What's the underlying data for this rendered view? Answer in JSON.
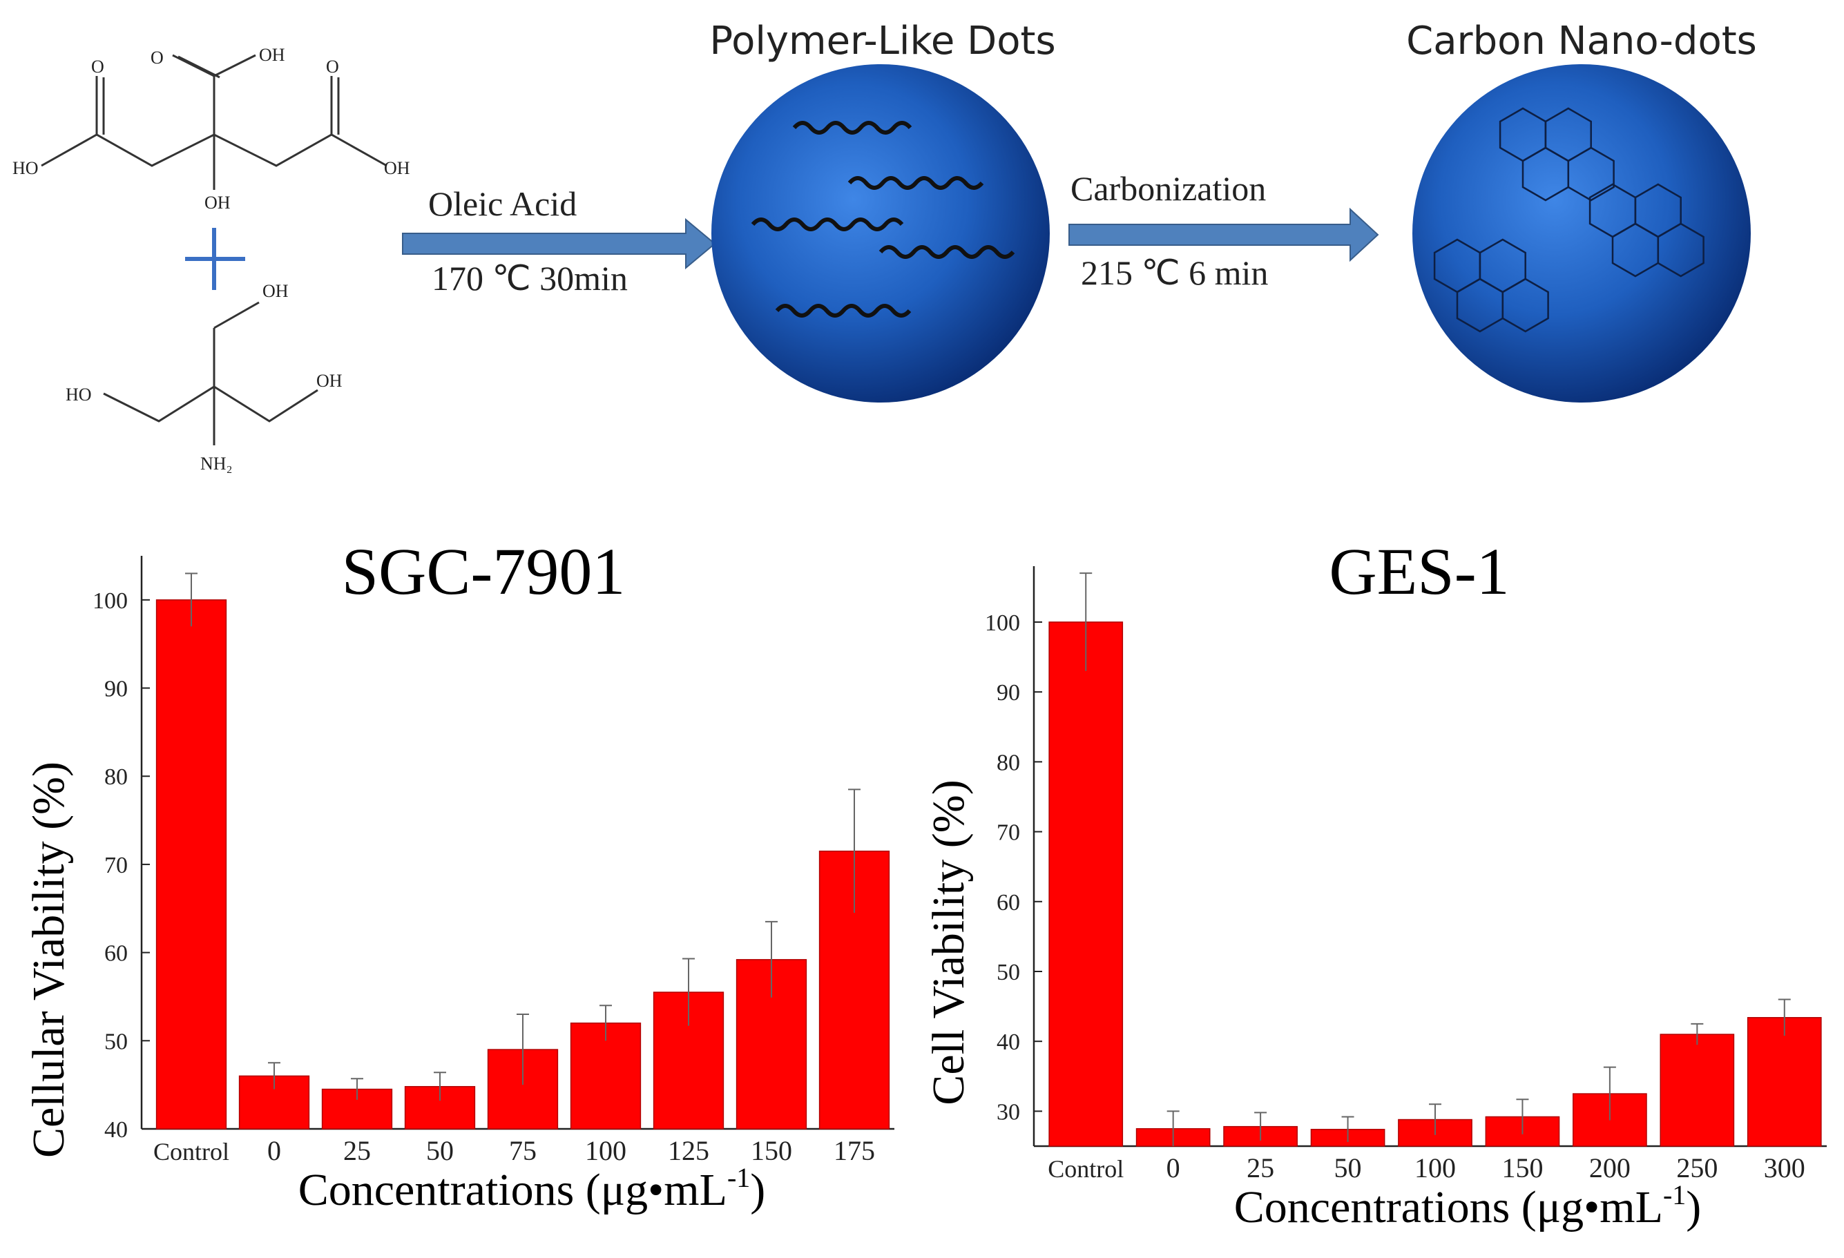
{
  "scheme": {
    "molecule_labels": {
      "citric": [
        "O",
        "OH",
        "O",
        "O",
        "HO",
        "OH",
        "OH"
      ],
      "tris": [
        "OH",
        "HO",
        "OH",
        "NH₂"
      ]
    },
    "arrow1": {
      "top": "Oleic Acid",
      "bottom": "170 ℃ 30min"
    },
    "arrow2": {
      "top": "Carbonization",
      "bottom": "215 ℃ 6 min"
    },
    "dot1_title": "Polymer-Like Dots",
    "dot2_title": "Carbon Nano-dots",
    "colors": {
      "arrow": "#4f81bd",
      "sphere": "#1f5fbf",
      "sphere_dark": "#0a2f78"
    }
  },
  "chart_data": [
    {
      "type": "bar",
      "title": "SGC-7901",
      "xlabel": "Concentrations (μg•mL",
      "xlabel_sup": "-1",
      "xlabel_end": ")",
      "ylabel": "Cellular Viability (%)",
      "categories": [
        "Control",
        "0",
        "25",
        "50",
        "75",
        "100",
        "125",
        "150",
        "175"
      ],
      "values": [
        100,
        46,
        44.5,
        44.8,
        49,
        52,
        55.5,
        59.2,
        71.5
      ],
      "errors": [
        3,
        1.5,
        1.2,
        1.6,
        4,
        2,
        3.8,
        4.3,
        7
      ],
      "ylim": [
        40,
        105
      ],
      "yticks": [
        40,
        50,
        60,
        70,
        80,
        90,
        100
      ],
      "bar_color": "#ff0000"
    },
    {
      "type": "bar",
      "title": "GES-1",
      "xlabel": "Concentrations (μg•mL",
      "xlabel_sup": "-1",
      "xlabel_end": ")",
      "ylabel": "Cell Viability (%)",
      "categories": [
        "Control",
        "0",
        "25",
        "50",
        "100",
        "150",
        "200",
        "250",
        "300"
      ],
      "values": [
        100,
        27.5,
        27.8,
        27.4,
        28.8,
        29.2,
        32.5,
        41,
        43.4
      ],
      "errors": [
        7,
        2.5,
        2,
        1.8,
        2.2,
        2.5,
        3.8,
        1.5,
        2.6
      ],
      "ylim": [
        25,
        108
      ],
      "yticks": [
        30,
        40,
        50,
        60,
        70,
        80,
        90,
        100
      ],
      "bar_color": "#ff0000"
    }
  ]
}
